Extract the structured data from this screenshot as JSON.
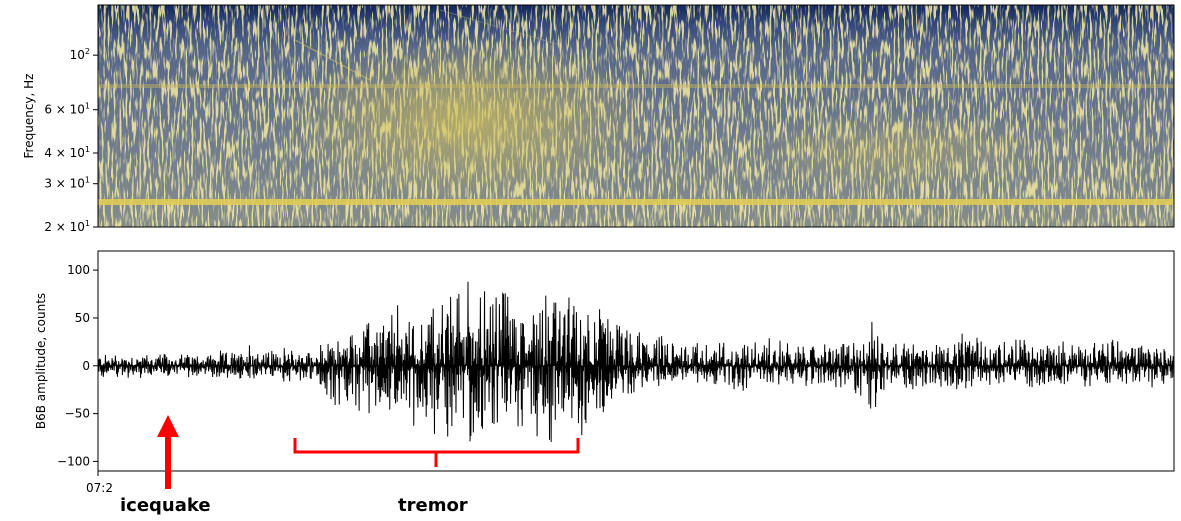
{
  "chart_data": [
    {
      "type": "heatmap",
      "panel": "spectrogram",
      "title": "",
      "xlabel": "",
      "ylabel": "Frequency, Hz",
      "y_scale": "log",
      "ylim": [
        20,
        160
      ],
      "y_ticks": [
        {
          "value": 20,
          "mantissa": "2 × 10",
          "exp": "1"
        },
        {
          "value": 30,
          "mantissa": "3 × 10",
          "exp": "1"
        },
        {
          "value": 40,
          "mantissa": "4 × 10",
          "exp": "1"
        },
        {
          "value": 60,
          "mantissa": "6 × 10",
          "exp": "1"
        },
        {
          "value": 100,
          "mantissa": "10",
          "exp": "2"
        }
      ],
      "colormap": [
        "#1a2c63",
        "#495b86",
        "#7e8c99",
        "#b3ae7c",
        "#e0cc55"
      ],
      "tonal_lines_hz": [
        81,
        26
      ],
      "grid": false
    },
    {
      "type": "line",
      "panel": "waveform",
      "title": "",
      "xlabel": "",
      "ylabel": "B6B amplitude, counts",
      "ylim": [
        -110,
        120
      ],
      "y_ticks": [
        100,
        50,
        0,
        -50,
        -100
      ],
      "x_tick_label": "07:2",
      "line_color": "#000000",
      "envelope": {
        "x": [
          0,
          0.03,
          0.06,
          0.1,
          0.133,
          0.14,
          0.15,
          0.17,
          0.2,
          0.22,
          0.25,
          0.28,
          0.3,
          0.32,
          0.34,
          0.36,
          0.38,
          0.39,
          0.4,
          0.42,
          0.44,
          0.46,
          0.47,
          0.48,
          0.5,
          0.52,
          0.55,
          0.58,
          0.6,
          0.62,
          0.65,
          0.68,
          0.7,
          0.72,
          0.74,
          0.76,
          0.78,
          0.8,
          0.83,
          0.86,
          0.88,
          0.9,
          0.93,
          0.96,
          1.0
        ],
        "upper": [
          15,
          15,
          14,
          16,
          17,
          42,
          18,
          20,
          20,
          30,
          52,
          70,
          65,
          80,
          105,
          90,
          110,
          75,
          80,
          108,
          75,
          85,
          72,
          60,
          40,
          35,
          30,
          28,
          30,
          35,
          25,
          28,
          30,
          50,
          30,
          28,
          30,
          35,
          30,
          35,
          30,
          28,
          32,
          30,
          25
        ],
        "lower": [
          -14,
          -15,
          -14,
          -14,
          -16,
          -35,
          -15,
          -18,
          -20,
          -50,
          -58,
          -55,
          -75,
          -80,
          -95,
          -80,
          -100,
          -70,
          -75,
          -95,
          -75,
          -80,
          -55,
          -40,
          -30,
          -25,
          -22,
          -28,
          -35,
          -25,
          -22,
          -25,
          -30,
          -62,
          -30,
          -28,
          -25,
          -35,
          -30,
          -28,
          -25,
          -25,
          -22,
          -28,
          -25
        ]
      },
      "grid": false
    }
  ],
  "annotations": {
    "icequake_label": "icequake",
    "tremor_label": "tremor",
    "arrow_color": "#ff0000",
    "bracket_color": "#ff0000"
  }
}
